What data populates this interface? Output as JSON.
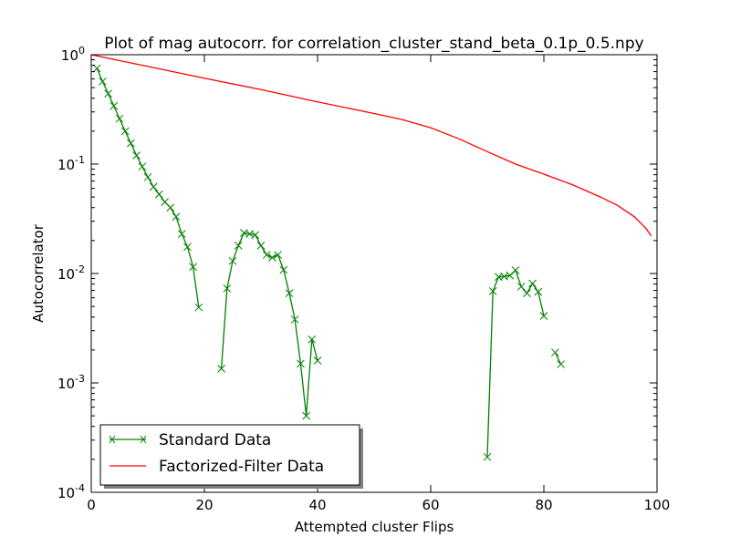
{
  "chart_data": {
    "type": "line",
    "title": "Plot of mag autocorr. for correlation_cluster_stand_beta_0.1p_0.5.npy",
    "xlabel": "Attempted cluster Flips",
    "ylabel": "Autocorrelator",
    "xlim": [
      0,
      100
    ],
    "ylim": [
      0.0001,
      1
    ],
    "yscale": "log",
    "grid": false,
    "legend_position": "lower-left",
    "x_ticks": [
      {
        "value": 0,
        "label": "0"
      },
      {
        "value": 20,
        "label": "20"
      },
      {
        "value": 40,
        "label": "40"
      },
      {
        "value": 60,
        "label": "60"
      },
      {
        "value": 80,
        "label": "80"
      },
      {
        "value": 100,
        "label": "100"
      }
    ],
    "y_ticks": [
      {
        "value": 1,
        "base": "10",
        "exp": "0"
      },
      {
        "value": 0.1,
        "base": "10",
        "exp": "-1"
      },
      {
        "value": 0.01,
        "base": "10",
        "exp": "-2"
      },
      {
        "value": 0.001,
        "base": "10",
        "exp": "-3"
      },
      {
        "value": 0.0001,
        "base": "10",
        "exp": "-4"
      }
    ],
    "series": [
      {
        "name": "Standard Data",
        "color": "#008000",
        "marker": "x",
        "segments": [
          [
            [
              1,
              0.75
            ],
            [
              2,
              0.57
            ],
            [
              3,
              0.44
            ],
            [
              4,
              0.34
            ],
            [
              5,
              0.26
            ],
            [
              6,
              0.2
            ],
            [
              7,
              0.155
            ],
            [
              8,
              0.12
            ],
            [
              9,
              0.095
            ],
            [
              10,
              0.076
            ],
            [
              11,
              0.062
            ],
            [
              12,
              0.053
            ],
            [
              13,
              0.045
            ],
            [
              14,
              0.04
            ],
            [
              15,
              0.033
            ],
            [
              16,
              0.023
            ],
            [
              17,
              0.0175
            ],
            [
              18,
              0.0115
            ],
            [
              19,
              0.0049
            ]
          ],
          [
            [
              23,
              0.00135
            ],
            [
              24,
              0.0073
            ],
            [
              25,
              0.013
            ],
            [
              26,
              0.018
            ],
            [
              27,
              0.0235
            ],
            [
              28,
              0.023
            ],
            [
              29,
              0.0225
            ],
            [
              30,
              0.018
            ],
            [
              31,
              0.0148
            ],
            [
              32,
              0.014
            ],
            [
              33,
              0.0148
            ],
            [
              34,
              0.0108
            ],
            [
              35,
              0.0066
            ],
            [
              36,
              0.0038
            ],
            [
              37,
              0.0015
            ],
            [
              38,
              0.0005
            ],
            [
              39,
              0.0025
            ],
            [
              40,
              0.0016
            ]
          ],
          [
            [
              70,
              0.00021
            ],
            [
              71,
              0.0069
            ],
            [
              72,
              0.0093
            ],
            [
              73,
              0.0094
            ],
            [
              74,
              0.0096
            ],
            [
              75,
              0.0107
            ],
            [
              76,
              0.0076
            ],
            [
              77,
              0.0066
            ],
            [
              78,
              0.0081
            ],
            [
              79,
              0.0068
            ],
            [
              80,
              0.0041
            ]
          ],
          [
            [
              82,
              0.0019
            ],
            [
              83,
              0.00148
            ]
          ]
        ]
      },
      {
        "name": "Factorized-Filter Data",
        "color": "#ff0000",
        "marker": "none",
        "points": [
          [
            0,
            1.0
          ],
          [
            10,
            0.78
          ],
          [
            20,
            0.61
          ],
          [
            30,
            0.48
          ],
          [
            40,
            0.37
          ],
          [
            50,
            0.29
          ],
          [
            55,
            0.255
          ],
          [
            60,
            0.215
          ],
          [
            65,
            0.17
          ],
          [
            70,
            0.13
          ],
          [
            75,
            0.1
          ],
          [
            80,
            0.081
          ],
          [
            85,
            0.065
          ],
          [
            90,
            0.05
          ],
          [
            93,
            0.042
          ],
          [
            96,
            0.033
          ],
          [
            98,
            0.026
          ],
          [
            99,
            0.022
          ]
        ]
      }
    ]
  }
}
